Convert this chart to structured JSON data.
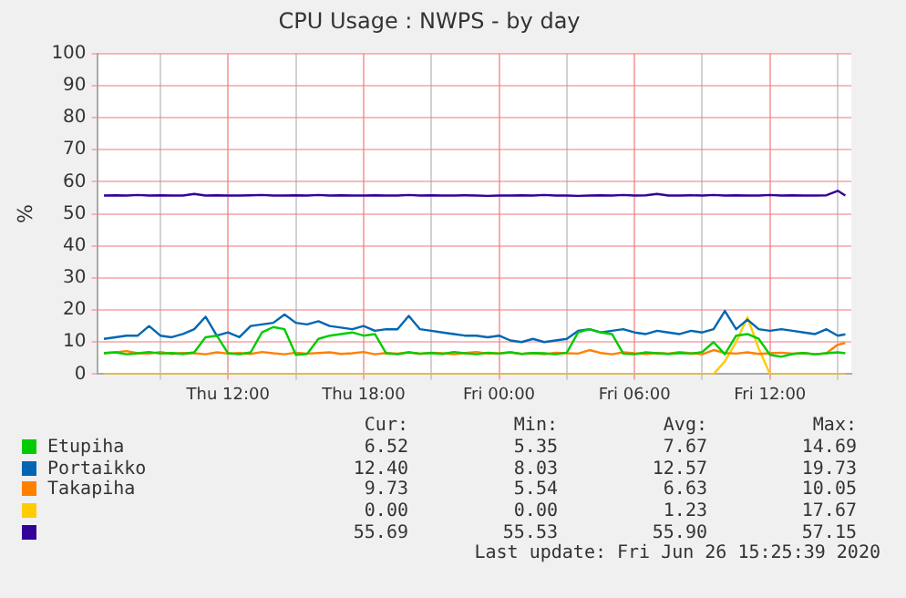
{
  "chart_data": {
    "type": "line",
    "title": "CPU Usage : NWPS - by day",
    "ylabel": "%",
    "x": [
      "2020-06-25T06:30",
      "2020-06-25T07:00",
      "2020-06-25T07:30",
      "2020-06-25T08:00",
      "2020-06-25T08:30",
      "2020-06-25T09:00",
      "2020-06-25T09:30",
      "2020-06-25T10:00",
      "2020-06-25T10:30",
      "2020-06-25T11:00",
      "2020-06-25T11:30",
      "2020-06-25T12:00",
      "2020-06-25T12:30",
      "2020-06-25T13:00",
      "2020-06-25T13:30",
      "2020-06-25T14:00",
      "2020-06-25T14:30",
      "2020-06-25T15:00",
      "2020-06-25T15:30",
      "2020-06-25T16:00",
      "2020-06-25T16:30",
      "2020-06-25T17:00",
      "2020-06-25T17:30",
      "2020-06-25T18:00",
      "2020-06-25T18:30",
      "2020-06-25T19:00",
      "2020-06-25T19:30",
      "2020-06-25T20:00",
      "2020-06-25T20:30",
      "2020-06-25T21:00",
      "2020-06-25T21:30",
      "2020-06-25T22:00",
      "2020-06-25T22:30",
      "2020-06-25T23:00",
      "2020-06-25T23:30",
      "2020-06-26T00:00",
      "2020-06-26T00:30",
      "2020-06-26T01:00",
      "2020-06-26T01:30",
      "2020-06-26T02:00",
      "2020-06-26T02:30",
      "2020-06-26T03:00",
      "2020-06-26T03:30",
      "2020-06-26T04:00",
      "2020-06-26T04:30",
      "2020-06-26T05:00",
      "2020-06-26T05:30",
      "2020-06-26T06:00",
      "2020-06-26T06:30",
      "2020-06-26T07:00",
      "2020-06-26T07:30",
      "2020-06-26T08:00",
      "2020-06-26T08:30",
      "2020-06-26T09:00",
      "2020-06-26T09:30",
      "2020-06-26T10:00",
      "2020-06-26T10:30",
      "2020-06-26T11:00",
      "2020-06-26T11:30",
      "2020-06-26T12:00",
      "2020-06-26T12:30",
      "2020-06-26T13:00",
      "2020-06-26T13:30",
      "2020-06-26T14:00",
      "2020-06-26T14:30",
      "2020-06-26T15:00",
      "2020-06-26T15:20"
    ],
    "xlim": [
      "2020-06-25T06:12",
      "2020-06-26T15:36"
    ],
    "xticks": [
      {
        "value": "2020-06-25T09:00",
        "label": null
      },
      {
        "value": "2020-06-25T12:00",
        "label": "Thu 12:00"
      },
      {
        "value": "2020-06-25T15:00",
        "label": null
      },
      {
        "value": "2020-06-25T18:00",
        "label": "Thu 18:00"
      },
      {
        "value": "2020-06-25T21:00",
        "label": null
      },
      {
        "value": "2020-06-26T00:00",
        "label": "Fri 00:00"
      },
      {
        "value": "2020-06-26T03:00",
        "label": null
      },
      {
        "value": "2020-06-26T06:00",
        "label": "Fri 06:00"
      },
      {
        "value": "2020-06-26T09:00",
        "label": null
      },
      {
        "value": "2020-06-26T12:00",
        "label": "Fri 12:00"
      },
      {
        "value": "2020-06-26T15:00",
        "label": null
      }
    ],
    "ylim": [
      0,
      100
    ],
    "yticks": [
      0,
      10,
      20,
      30,
      40,
      50,
      60,
      70,
      80,
      90,
      100
    ],
    "grid": true,
    "legend": "bottom",
    "line_style": "solid",
    "marker": "none",
    "series": [
      {
        "name": "Etupiha",
        "color": "#00cc00",
        "values": [
          6.5,
          6.8,
          6.2,
          6.5,
          6.9,
          6.4,
          6.6,
          6.3,
          6.8,
          11.5,
          12,
          6.5,
          6.2,
          6.8,
          13,
          14.7,
          14,
          6,
          6.3,
          11,
          12,
          12.5,
          13,
          12,
          12.5,
          6.5,
          6.2,
          6.8,
          6.4,
          6.6,
          6.3,
          6.9,
          6.5,
          6.2,
          6.7,
          6.4,
          6.8,
          6.3,
          6.6,
          6.5,
          6.2,
          6.7,
          13,
          14,
          13,
          12.5,
          6.4,
          6.2,
          6.8,
          6.5,
          6.3,
          6.6,
          6.4,
          6.9,
          10,
          6.2,
          12,
          12.5,
          11,
          6,
          5.4,
          6.3,
          6.6,
          6.2,
          6.5,
          6.8,
          6.5
        ]
      },
      {
        "name": "Portaikko",
        "color": "#0066b3",
        "values": [
          11,
          11.5,
          12,
          12,
          15,
          12,
          11.5,
          12.5,
          14,
          17.9,
          12,
          13,
          11.5,
          15,
          15.5,
          16,
          18.6,
          16,
          15.5,
          16.5,
          15,
          14.5,
          14,
          15,
          13.5,
          14,
          14,
          18.2,
          14,
          13.5,
          13,
          12.5,
          12,
          12,
          11.5,
          12,
          10.5,
          10,
          11,
          10,
          10.5,
          11,
          13.5,
          14,
          13,
          13.5,
          14,
          13,
          12.5,
          13.5,
          13,
          12.5,
          13.5,
          13,
          14,
          19.7,
          14,
          17,
          14,
          13.5,
          14,
          13.5,
          13,
          12.5,
          14,
          12,
          12.4
        ]
      },
      {
        "name": "Takapiha",
        "color": "#ff8000",
        "values": [
          6.6,
          6.8,
          7.2,
          6.5,
          6.4,
          6.9,
          6.3,
          6.6,
          6.5,
          6.2,
          6.8,
          6.4,
          6.6,
          6.3,
          6.9,
          6.5,
          6.2,
          6.7,
          6.4,
          6.6,
          6.8,
          6.3,
          6.5,
          6.9,
          6.2,
          6.6,
          6.4,
          6.8,
          6.3,
          6.7,
          6.5,
          6.2,
          6.6,
          6.9,
          6.4,
          6.5,
          6.8,
          6.3,
          6.6,
          6.2,
          6.7,
          6.5,
          6.4,
          7.5,
          6.6,
          6.2,
          6.8,
          6.5,
          6.3,
          6.6,
          6.4,
          6.9,
          6.5,
          6.2,
          7.5,
          6.6,
          6.4,
          6.8,
          6.3,
          6.5,
          6.7,
          6.4,
          6.6,
          6.2,
          6.5,
          9.2,
          9.7
        ]
      },
      {
        "name": null,
        "color": "#ffcc00",
        "values": [
          0,
          0,
          0,
          0,
          0,
          0,
          0,
          0,
          0,
          0,
          0,
          0,
          0,
          0,
          0,
          0,
          0,
          0,
          0,
          0,
          0,
          0,
          0,
          0,
          0,
          0,
          0,
          0,
          0,
          0,
          0,
          0,
          0,
          0,
          0,
          0,
          0,
          0,
          0,
          0,
          0,
          0,
          0,
          0,
          0,
          0,
          0,
          0,
          0,
          0,
          0,
          0,
          0,
          0,
          0,
          4,
          10,
          17.7,
          8,
          0,
          0,
          0,
          0,
          0,
          0,
          0,
          0
        ]
      },
      {
        "name": null,
        "color": "#330099",
        "values": [
          55.7,
          55.8,
          55.7,
          55.9,
          55.7,
          55.8,
          55.7,
          55.7,
          56.2,
          55.7,
          55.8,
          55.7,
          55.7,
          55.8,
          55.9,
          55.7,
          55.7,
          55.8,
          55.7,
          55.9,
          55.7,
          55.8,
          55.7,
          55.7,
          55.8,
          55.7,
          55.7,
          55.9,
          55.7,
          55.8,
          55.7,
          55.7,
          55.8,
          55.7,
          55.6,
          55.7,
          55.7,
          55.8,
          55.7,
          55.9,
          55.7,
          55.7,
          55.6,
          55.7,
          55.8,
          55.7,
          55.9,
          55.7,
          55.8,
          56.2,
          55.7,
          55.7,
          55.8,
          55.7,
          55.9,
          55.7,
          55.8,
          55.7,
          55.7,
          55.9,
          55.7,
          55.8,
          55.7,
          55.7,
          55.8,
          57.2,
          55.7
        ]
      }
    ],
    "annotations": [
      "Cur:",
      "Min:",
      "Avg:",
      "Max:",
      "6.52",
      "5.35",
      "7.67",
      "14.69",
      "12.40",
      "8.03",
      "12.57",
      "19.73",
      "9.73",
      "5.54",
      "6.63",
      "10.05",
      "0.00",
      "0.00",
      "1.23",
      "17.67",
      "55.69",
      "55.53",
      "55.90",
      "57.15",
      "Last update: Fri Jun 26 15:25:39 2020"
    ]
  }
}
